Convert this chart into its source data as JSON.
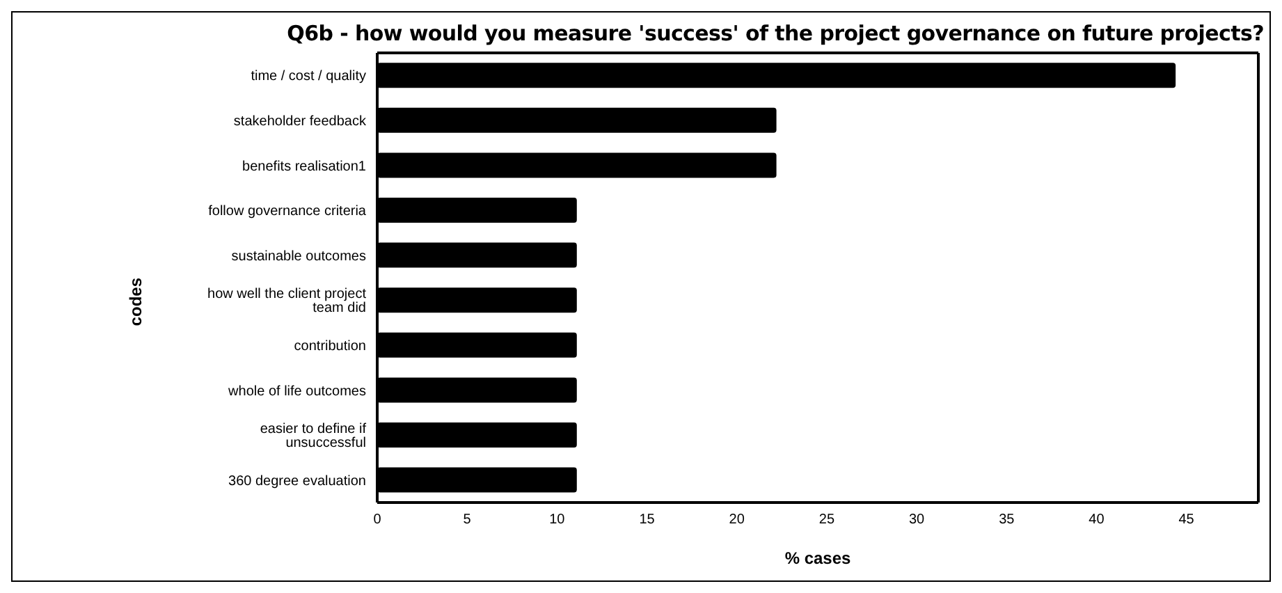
{
  "chart_data": {
    "type": "bar",
    "orientation": "horizontal",
    "title": "Q6b - how would you measure 'success' of the project governance on future projects?",
    "xlabel": "% cases",
    "ylabel": "codes",
    "categories": [
      "time / cost / quality",
      "stakeholder feedback",
      "benefits realisation1",
      "follow governance criteria",
      "sustainable outcomes",
      "how well the client project team did",
      "contribution",
      "whole of life outcomes",
      "easier to define if unsuccessful",
      "360 degree evaluation"
    ],
    "values": [
      44.4,
      22.2,
      22.2,
      11.1,
      11.1,
      11.1,
      11.1,
      11.1,
      11.1,
      11.1
    ],
    "color": "#000000",
    "xlim": [
      0,
      49
    ],
    "xticks": [
      0,
      5,
      10,
      15,
      20,
      25,
      30,
      35,
      40,
      45
    ],
    "grid": false,
    "legend": false
  }
}
